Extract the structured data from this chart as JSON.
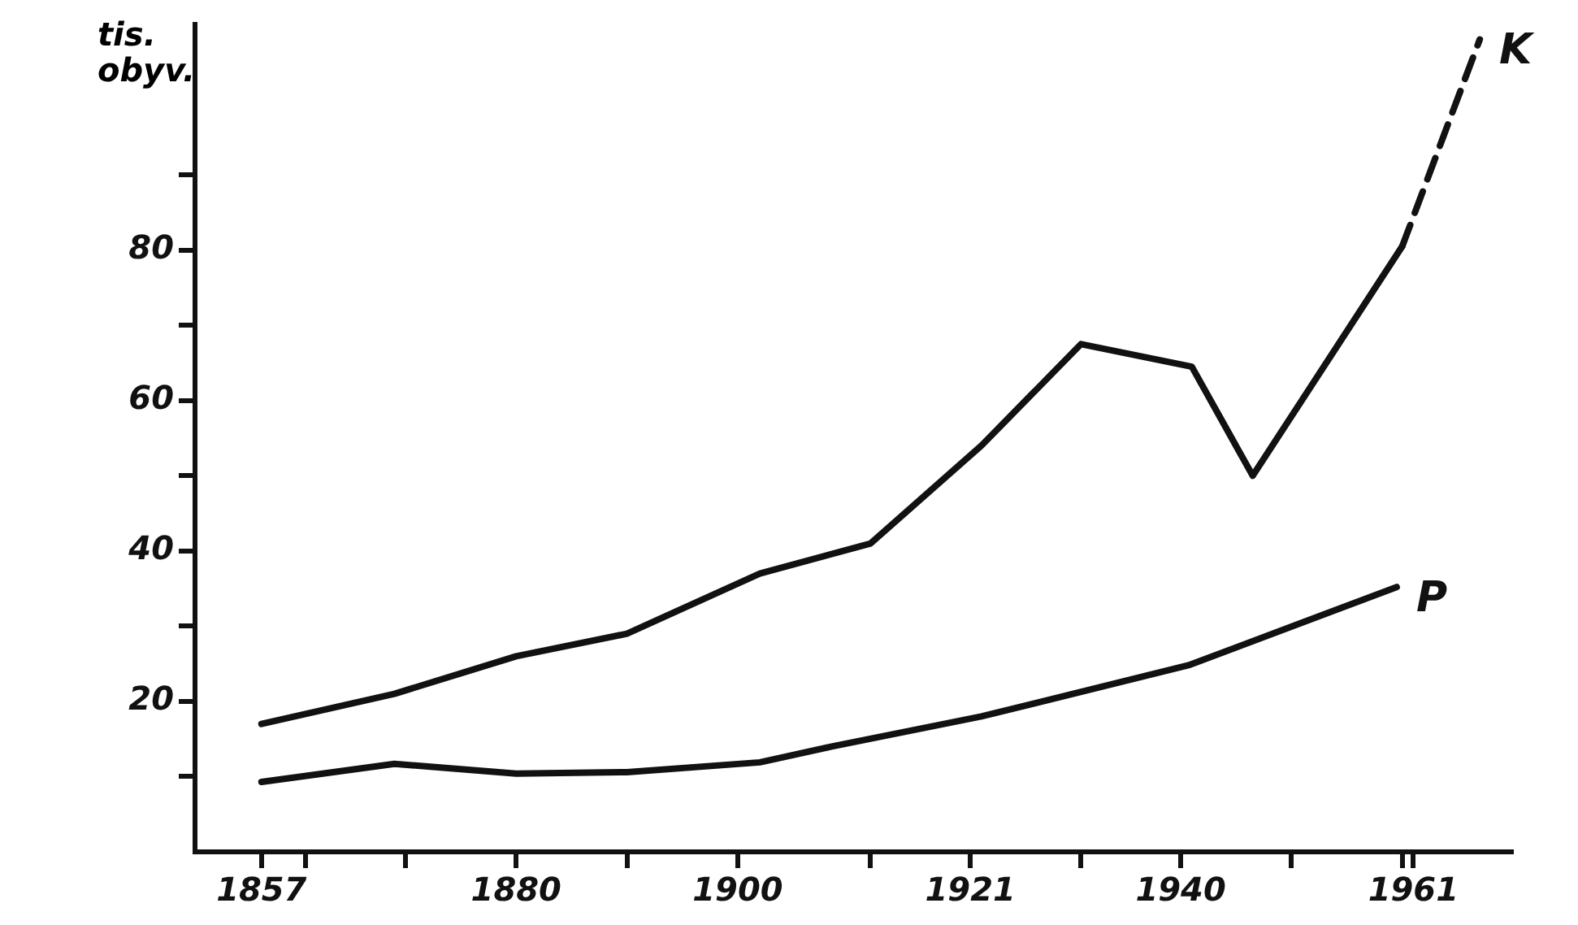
{
  "chart_data": {
    "type": "line",
    "ylabel": "tis. obyv.",
    "xlim": [
      1851,
      1970
    ],
    "ylim": [
      0,
      110
    ],
    "xticks": [
      1857,
      {
        "value": 1861,
        "label": null
      },
      {
        "value": 1870,
        "label": null
      },
      1880,
      {
        "value": 1890,
        "label": null
      },
      1900,
      {
        "value": 1912,
        "label": null
      },
      1921,
      {
        "value": 1931,
        "label": null
      },
      1940,
      {
        "value": 1950,
        "label": null
      },
      {
        "value": 1960,
        "label": null
      },
      1961
    ],
    "yticks": [
      {
        "value": 10,
        "label": null
      },
      20,
      {
        "value": 30,
        "label": null
      },
      40,
      {
        "value": 50,
        "label": null
      },
      60,
      {
        "value": 70,
        "label": null
      },
      80,
      {
        "value": 90,
        "label": null
      }
    ],
    "grid": false,
    "legend": false,
    "marker": "none",
    "series": [
      {
        "name": "K",
        "color": "#111111",
        "line_style": "solid",
        "x": [
          1857,
          1869,
          1880,
          1890,
          1902,
          1912,
          1922,
          1931,
          1941,
          1946.5,
          1960
        ],
        "values": [
          17,
          21,
          26,
          29,
          37,
          41,
          54,
          67.5,
          64.5,
          50,
          80.5
        ]
      },
      {
        "color": "#111111",
        "line_style": "dashed",
        "x": [
          1960,
          1967
        ],
        "values": [
          80.5,
          108
        ]
      },
      {
        "name": "P",
        "color": "#111111",
        "line_style": "solid",
        "x": [
          1857,
          1869,
          1880,
          1890,
          1902,
          1908.5,
          1922,
          1940.7,
          1959.5
        ],
        "values": [
          9.3,
          11.7,
          10.4,
          10.6,
          11.9,
          14,
          18,
          24.8,
          35.2
        ]
      }
    ]
  }
}
